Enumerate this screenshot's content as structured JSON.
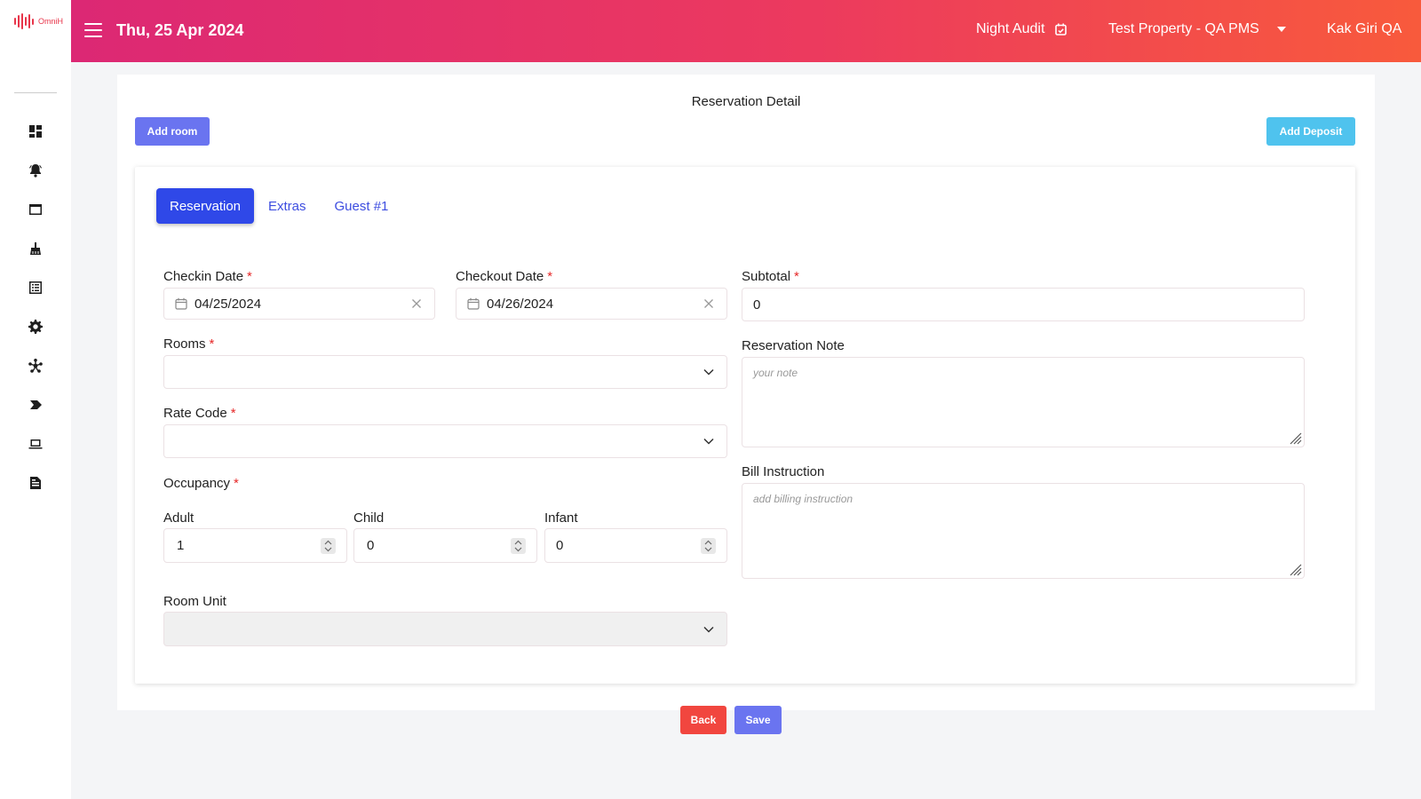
{
  "brand": {
    "logo_text": "OmniH",
    "accent": "#e8354a"
  },
  "header": {
    "date": "Thu, 25 Apr 2024",
    "night_audit": "Night Audit",
    "property": "Test Property - QA PMS",
    "user": "Kak Giri QA",
    "gradient": [
      "#dc2874",
      "#f85a3c"
    ]
  },
  "sidebar": {
    "icons": [
      "dashboard-icon",
      "alarm-bell-icon",
      "window-icon",
      "cleaning-icon",
      "list-icon",
      "gear-icon",
      "asterisk-icon",
      "tag-icon",
      "laptop-icon",
      "report-icon"
    ]
  },
  "page": {
    "title": "Reservation Detail",
    "add_room": "Add room",
    "add_deposit": "Add Deposit"
  },
  "tabs": [
    {
      "label": "Reservation",
      "active": true
    },
    {
      "label": "Extras",
      "active": false
    },
    {
      "label": "Guest #1",
      "active": false
    }
  ],
  "form": {
    "checkin": {
      "label": "Checkin Date",
      "value": "04/25/2024"
    },
    "checkout": {
      "label": "Checkout Date",
      "value": "04/26/2024"
    },
    "subtotal": {
      "label": "Subtotal",
      "value": "0"
    },
    "rooms": {
      "label": "Rooms",
      "value": ""
    },
    "reservation_note": {
      "label": "Reservation Note",
      "placeholder": "your note"
    },
    "rate_code": {
      "label": "Rate Code",
      "value": ""
    },
    "bill_instruction": {
      "label": "Bill Instruction",
      "placeholder": "add billing instruction"
    },
    "occupancy": {
      "label": "Occupancy"
    },
    "adult": {
      "label": "Adult",
      "value": "1"
    },
    "child": {
      "label": "Child",
      "value": "0"
    },
    "infant": {
      "label": "Infant",
      "value": "0"
    },
    "room_unit": {
      "label": "Room Unit",
      "value": ""
    },
    "required_mark": "*"
  },
  "footer": {
    "back": "Back",
    "save": "Save"
  }
}
